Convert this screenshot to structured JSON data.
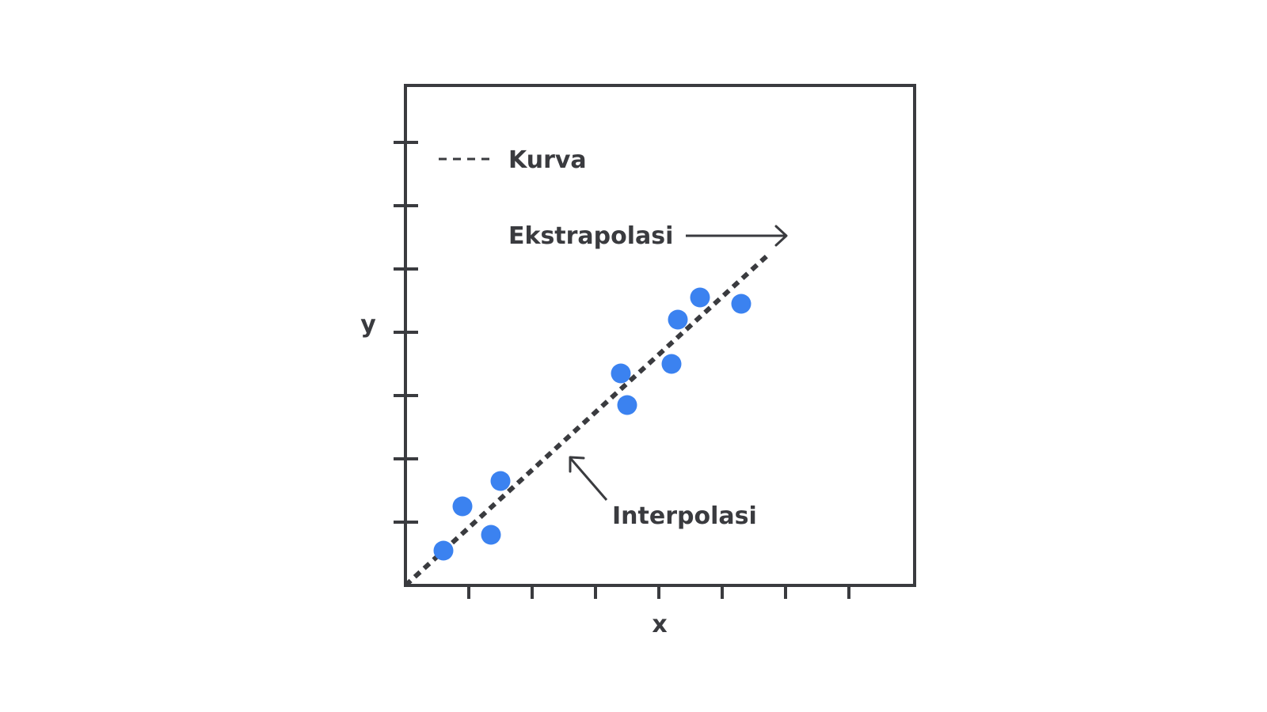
{
  "chart_data": {
    "type": "scatter",
    "xlabel": "x",
    "ylabel": "y",
    "xlim": [
      0,
      8
    ],
    "ylim": [
      0,
      8
    ],
    "x_ticks": [
      1,
      2,
      3,
      4,
      5,
      6,
      7
    ],
    "y_ticks": [
      1,
      2,
      3,
      4,
      5,
      6,
      7
    ],
    "tick_labels_shown": false,
    "grid": false,
    "legend": {
      "placement": "top-left",
      "entries": [
        {
          "label": "Kurva",
          "style": "dashed",
          "color": "#3a3b3f"
        }
      ]
    },
    "points": {
      "color": "#3b82f0",
      "x": [
        0.6,
        0.9,
        1.35,
        1.5,
        3.4,
        3.5,
        4.2,
        4.3,
        4.65,
        5.3
      ],
      "y": [
        0.55,
        1.25,
        0.8,
        1.65,
        3.35,
        2.85,
        3.5,
        4.2,
        4.55,
        4.45
      ]
    },
    "curve": {
      "label": "Kurva",
      "style": "dashed",
      "color": "#3a3b3f",
      "x": [
        0,
        5.7
      ],
      "y": [
        0,
        5.2
      ]
    },
    "annotations": [
      {
        "text": "Ekstrapolasi",
        "arrow": "right"
      },
      {
        "text": "Interpolasi",
        "arrow": "up-left"
      }
    ]
  },
  "colors": {
    "axis": "#3a3b3f",
    "point": "#3b82f0"
  }
}
